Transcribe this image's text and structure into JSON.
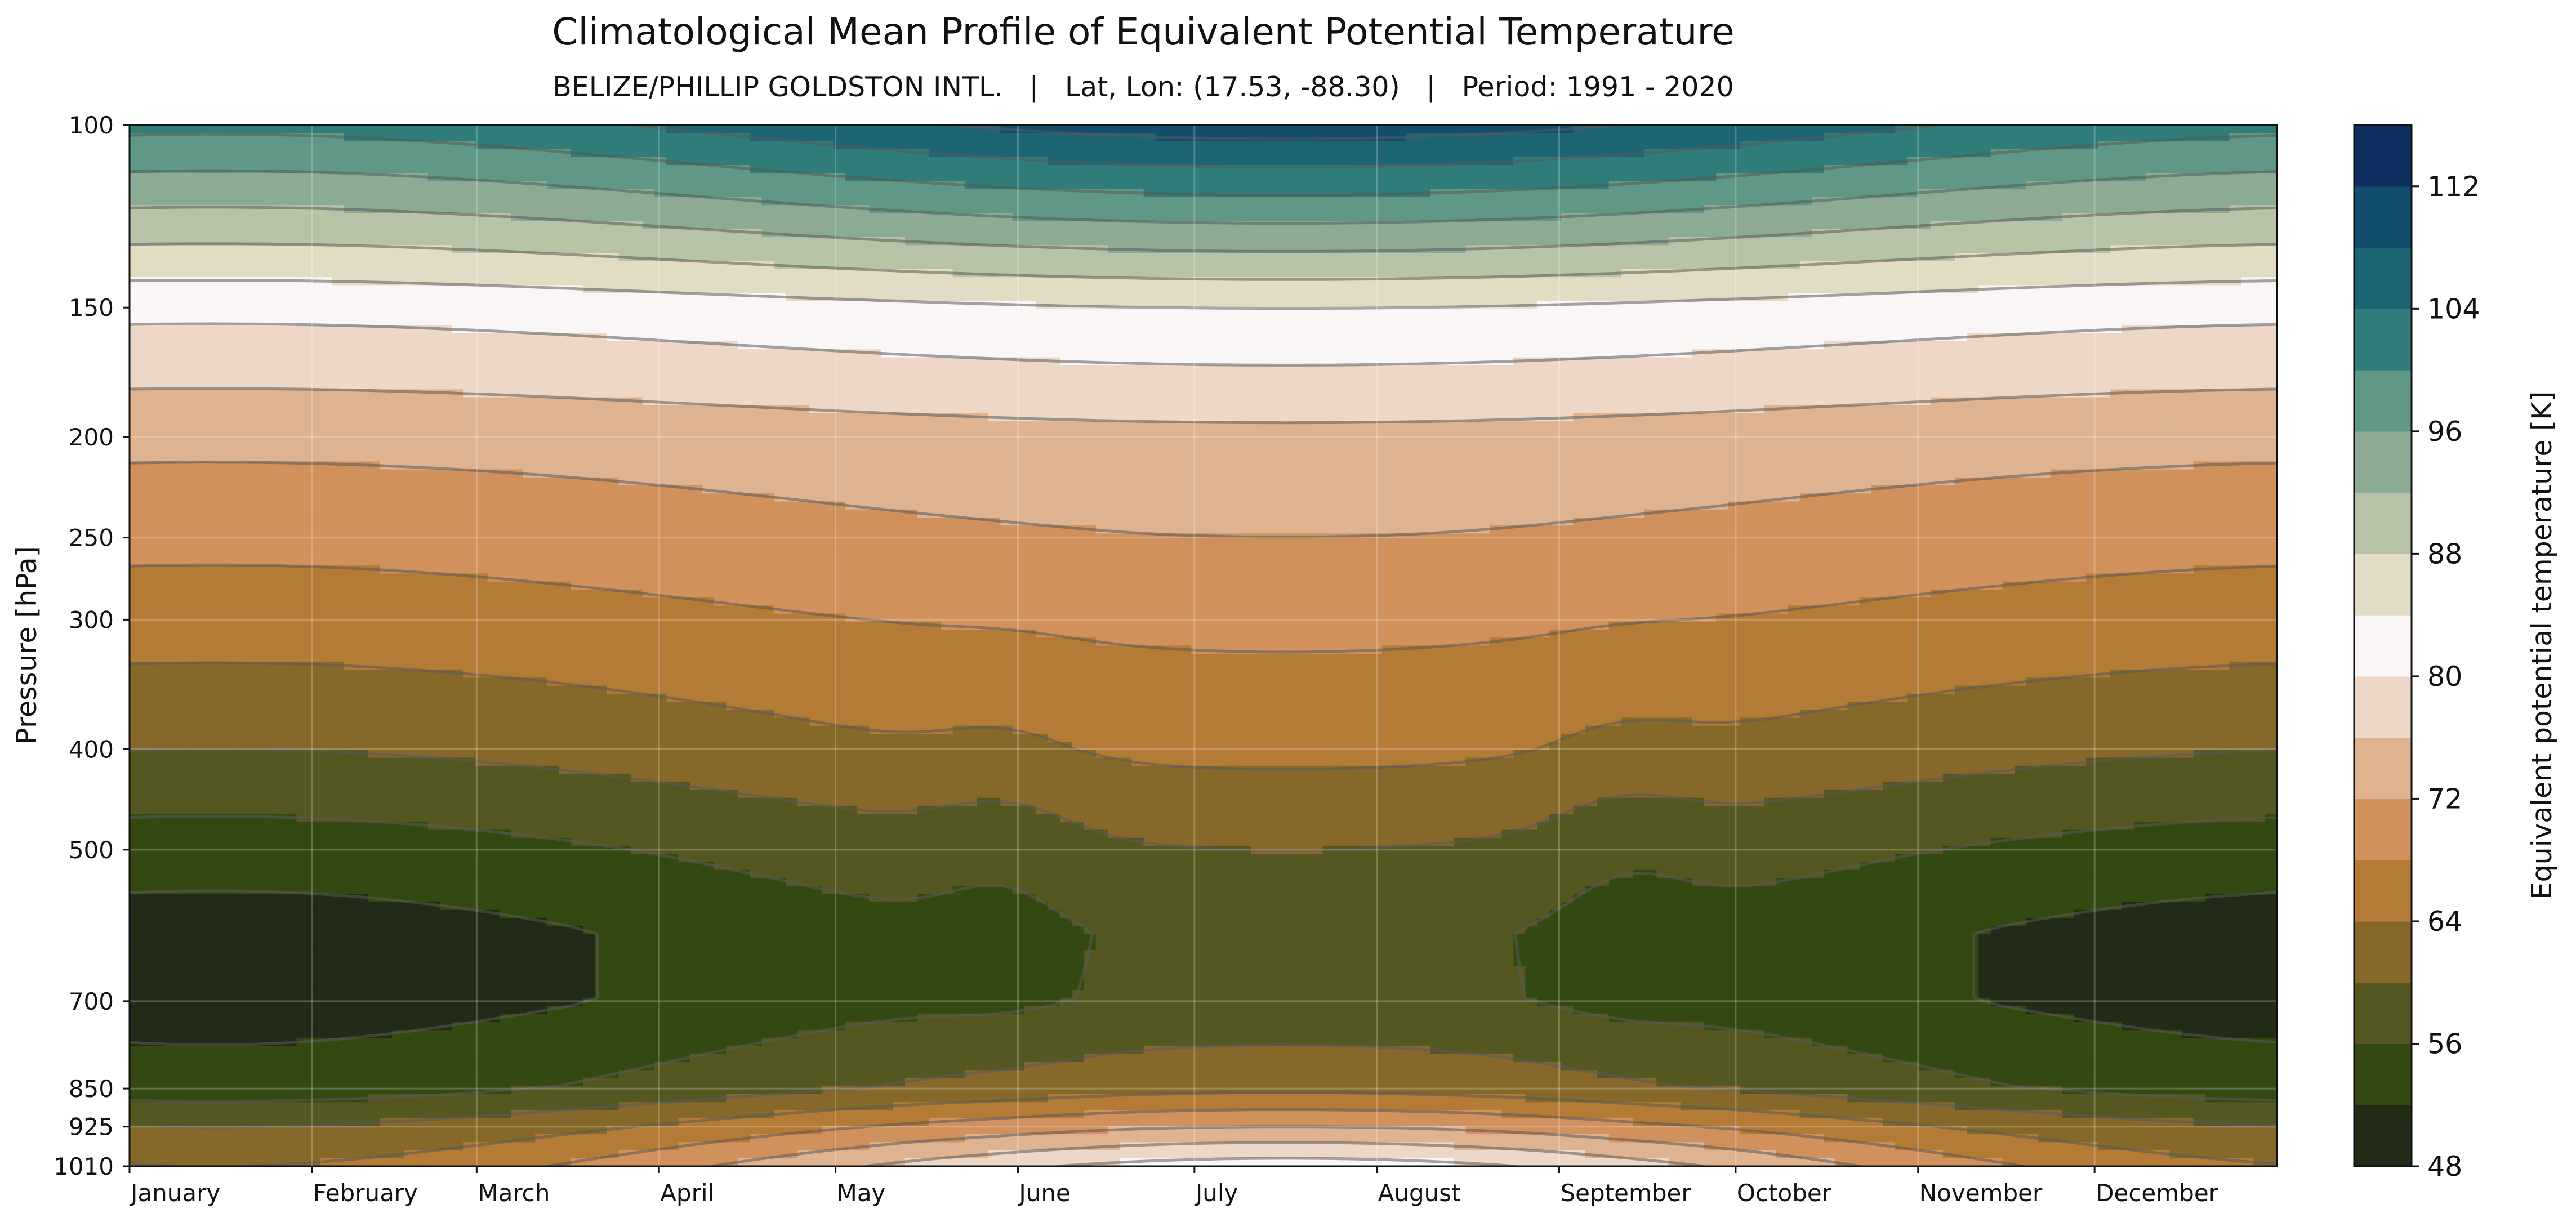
{
  "chart_data": {
    "type": "heatmap",
    "subtype": "filled-contour",
    "title": "Climatological Mean Profile of Equivalent Potential Temperature",
    "subtitle": "BELIZE/PHILLIP GOLDSTON INTL.   |   Lat, Lon: (17.53, -88.30)   |   Period: 1991 - 2020",
    "xlabel": "",
    "ylabel": "Pressure [hPa]",
    "colorbar_label": "Equivalent potential temperature [K]",
    "y_scale": "log",
    "y_inverted": true,
    "y_ticks": [
      100,
      150,
      200,
      250,
      300,
      400,
      500,
      700,
      850,
      925,
      1010
    ],
    "x_ticks": [
      {
        "label": "January",
        "day": 1
      },
      {
        "label": "February",
        "day": 32
      },
      {
        "label": "March",
        "day": 60
      },
      {
        "label": "April",
        "day": 91
      },
      {
        "label": "May",
        "day": 121
      },
      {
        "label": "June",
        "day": 152
      },
      {
        "label": "July",
        "day": 182
      },
      {
        "label": "August",
        "day": 213
      },
      {
        "label": "September",
        "day": 244
      },
      {
        "label": "October",
        "day": 274
      },
      {
        "label": "November",
        "day": 305
      },
      {
        "label": "December",
        "day": 335
      }
    ],
    "x_range": [
      1,
      366
    ],
    "grid": true,
    "levels": [
      48,
      52,
      56,
      60,
      64,
      68,
      72,
      76,
      80,
      84,
      88,
      92,
      96,
      100,
      104,
      108,
      112,
      116
    ],
    "colorbar_ticks": [
      48,
      56,
      64,
      72,
      80,
      88,
      96,
      104,
      112
    ],
    "colors": [
      "#212b16",
      "#324a12",
      "#545820",
      "#86692a",
      "#b47b36",
      "#d0915d",
      "#dfb390",
      "#edd7c6",
      "#fbf6f6",
      "#e3dcc4",
      "#b7c3a6",
      "#8dab92",
      "#5f9887",
      "#2f7c78",
      "#1e6573",
      "#134d6e",
      "#0d2e5e"
    ],
    "contour_line_color": "#5a5a5a",
    "profile_keypoints": {
      "pressure_hPa": [
        100,
        150,
        200,
        250,
        300,
        400,
        500,
        600,
        700,
        850,
        925,
        1010
      ],
      "theta_e_jan": [
        101,
        81,
        73,
        69,
        66,
        60,
        54,
        50,
        50,
        54,
        60,
        64
      ],
      "theta_e_jul": [
        110,
        84,
        75,
        72,
        69,
        65,
        60,
        57,
        57,
        63,
        72,
        82
      ]
    }
  }
}
